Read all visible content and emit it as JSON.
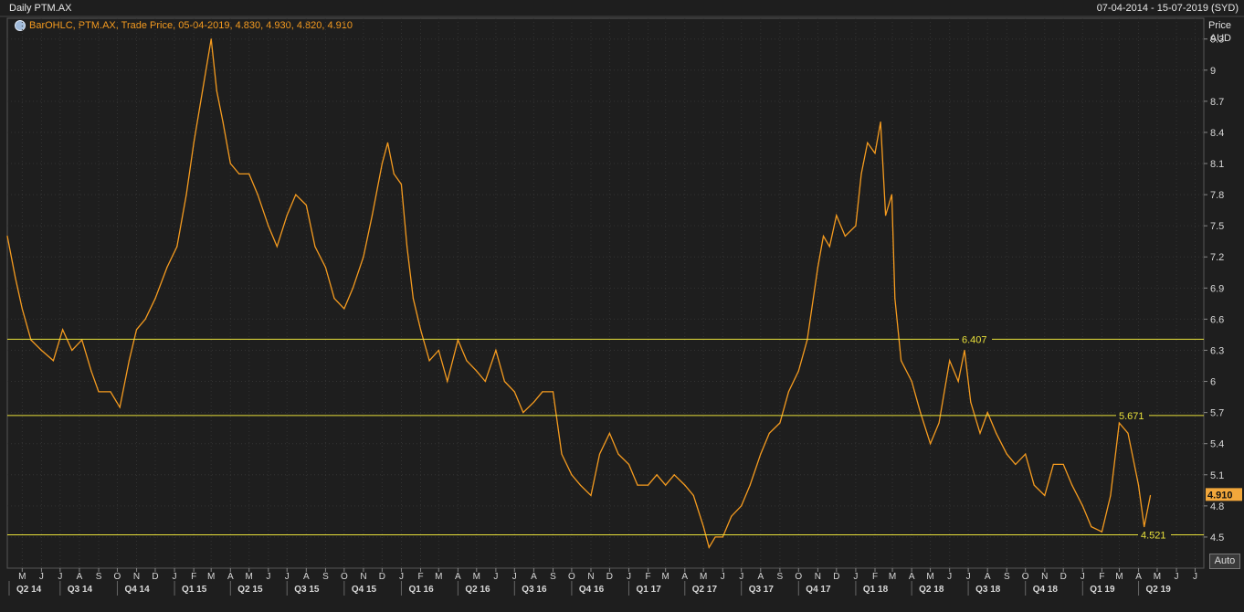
{
  "header": {
    "title": "Daily PTM.AX",
    "date_range": "07-04-2014 - 15-07-2019 (SYD)"
  },
  "legend": {
    "text": "BarOHLC, PTM.AX, Trade Price, 05-04-2019, 4.830, 4.930, 4.820, 4.910"
  },
  "axis": {
    "y_title": "Price",
    "y_unit": "AUD",
    "auto_label": "Auto"
  },
  "colors": {
    "background": "#1e1e1e",
    "grid": "#333333",
    "series": "#f59b1f",
    "hline": "#e8e03a",
    "current_price_bg": "#f2a73b"
  },
  "chart_data": {
    "type": "line",
    "title": "Daily PTM.AX",
    "ylabel": "Price AUD",
    "ylim": [
      4.2,
      9.5
    ],
    "y_ticks": [
      4.5,
      4.8,
      5.1,
      5.4,
      5.7,
      6,
      6.3,
      6.6,
      6.9,
      7.2,
      7.5,
      7.8,
      8.1,
      8.4,
      8.7,
      9,
      9.3
    ],
    "y_tick_labels": [
      "4.5",
      "4.8",
      "5.1",
      "5.4",
      "5.7",
      "6",
      "6.3",
      "6.6",
      "6.9",
      "7.2",
      "7.5",
      "7.8",
      "8.1",
      "8.4",
      "8.7",
      "9",
      "9.3"
    ],
    "x_range": [
      "2014-04-07",
      "2019-07-15"
    ],
    "month_labels": [
      "M",
      "J",
      "J",
      "A",
      "S",
      "O",
      "N",
      "D",
      "J",
      "F",
      "M",
      "A",
      "M",
      "J",
      "J",
      "A",
      "S",
      "O",
      "N",
      "D",
      "J",
      "F",
      "M",
      "A",
      "M",
      "J",
      "J",
      "A",
      "S",
      "O",
      "N",
      "D",
      "J",
      "F",
      "M",
      "A",
      "M",
      "J",
      "J",
      "A",
      "S",
      "O",
      "N",
      "D",
      "J",
      "F",
      "M",
      "A",
      "M",
      "J",
      "J",
      "A",
      "S",
      "O",
      "N",
      "D",
      "J",
      "F",
      "M",
      "A",
      "M",
      "J",
      "J"
    ],
    "month_dates": [
      "2014-05-01",
      "2014-06-01",
      "2014-07-01",
      "2014-08-01",
      "2014-09-01",
      "2014-10-01",
      "2014-11-01",
      "2014-12-01",
      "2015-01-01",
      "2015-02-01",
      "2015-03-01",
      "2015-04-01",
      "2015-05-01",
      "2015-06-01",
      "2015-07-01",
      "2015-08-01",
      "2015-09-01",
      "2015-10-01",
      "2015-11-01",
      "2015-12-01",
      "2016-01-01",
      "2016-02-01",
      "2016-03-01",
      "2016-04-01",
      "2016-05-01",
      "2016-06-01",
      "2016-07-01",
      "2016-08-01",
      "2016-09-01",
      "2016-10-01",
      "2016-11-01",
      "2016-12-01",
      "2017-01-01",
      "2017-02-01",
      "2017-03-01",
      "2017-04-01",
      "2017-05-01",
      "2017-06-01",
      "2017-07-01",
      "2017-08-01",
      "2017-09-01",
      "2017-10-01",
      "2017-11-01",
      "2017-12-01",
      "2018-01-01",
      "2018-02-01",
      "2018-03-01",
      "2018-04-01",
      "2018-05-01",
      "2018-06-01",
      "2018-07-01",
      "2018-08-01",
      "2018-09-01",
      "2018-10-01",
      "2018-11-01",
      "2018-12-01",
      "2019-01-01",
      "2019-02-01",
      "2019-03-01",
      "2019-04-01",
      "2019-05-01",
      "2019-06-01",
      "2019-07-01"
    ],
    "quarter_labels": [
      "Q2 14",
      "Q3 14",
      "Q4 14",
      "Q1 15",
      "Q2 15",
      "Q3 15",
      "Q4 15",
      "Q1 16",
      "Q2 16",
      "Q3 16",
      "Q4 16",
      "Q1 17",
      "Q2 17",
      "Q3 17",
      "Q4 17",
      "Q1 18",
      "Q2 18",
      "Q3 18",
      "Q4 18",
      "Q1 19",
      "Q2 19"
    ],
    "quarter_dates": [
      "2014-04-01",
      "2014-07-01",
      "2014-10-01",
      "2015-01-01",
      "2015-04-01",
      "2015-07-01",
      "2015-10-01",
      "2016-01-01",
      "2016-04-01",
      "2016-07-01",
      "2016-10-01",
      "2017-01-01",
      "2017-04-01",
      "2017-07-01",
      "2017-10-01",
      "2018-01-01",
      "2018-04-01",
      "2018-07-01",
      "2018-10-01",
      "2019-01-01",
      "2019-04-01"
    ],
    "series": [
      {
        "points": [
          [
            "2014-04-07",
            7.4
          ],
          [
            "2014-04-20",
            7.0
          ],
          [
            "2014-05-01",
            6.7
          ],
          [
            "2014-05-15",
            6.4
          ],
          [
            "2014-06-01",
            6.3
          ],
          [
            "2014-06-20",
            6.2
          ],
          [
            "2014-07-05",
            6.5
          ],
          [
            "2014-07-20",
            6.3
          ],
          [
            "2014-08-05",
            6.4
          ],
          [
            "2014-08-20",
            6.1
          ],
          [
            "2014-09-01",
            5.9
          ],
          [
            "2014-09-20",
            5.9
          ],
          [
            "2014-10-05",
            5.75
          ],
          [
            "2014-10-20",
            6.2
          ],
          [
            "2014-11-01",
            6.5
          ],
          [
            "2014-11-15",
            6.6
          ],
          [
            "2014-12-01",
            6.8
          ],
          [
            "2014-12-20",
            7.1
          ],
          [
            "2015-01-05",
            7.3
          ],
          [
            "2015-01-20",
            7.8
          ],
          [
            "2015-02-01",
            8.3
          ],
          [
            "2015-02-15",
            8.8
          ],
          [
            "2015-03-01",
            9.3
          ],
          [
            "2015-03-10",
            8.8
          ],
          [
            "2015-03-20",
            8.5
          ],
          [
            "2015-04-01",
            8.1
          ],
          [
            "2015-04-15",
            8.0
          ],
          [
            "2015-05-01",
            8.0
          ],
          [
            "2015-05-15",
            7.8
          ],
          [
            "2015-06-01",
            7.5
          ],
          [
            "2015-06-15",
            7.3
          ],
          [
            "2015-07-01",
            7.6
          ],
          [
            "2015-07-15",
            7.8
          ],
          [
            "2015-08-01",
            7.7
          ],
          [
            "2015-08-15",
            7.3
          ],
          [
            "2015-09-01",
            7.1
          ],
          [
            "2015-09-15",
            6.8
          ],
          [
            "2015-10-01",
            6.7
          ],
          [
            "2015-10-15",
            6.9
          ],
          [
            "2015-11-01",
            7.2
          ],
          [
            "2015-11-15",
            7.6
          ],
          [
            "2015-12-01",
            8.1
          ],
          [
            "2015-12-10",
            8.3
          ],
          [
            "2015-12-20",
            8.0
          ],
          [
            "2016-01-01",
            7.9
          ],
          [
            "2016-01-10",
            7.3
          ],
          [
            "2016-01-20",
            6.8
          ],
          [
            "2016-02-01",
            6.5
          ],
          [
            "2016-02-15",
            6.2
          ],
          [
            "2016-03-01",
            6.3
          ],
          [
            "2016-03-15",
            6.0
          ],
          [
            "2016-04-01",
            6.4
          ],
          [
            "2016-04-15",
            6.2
          ],
          [
            "2016-05-01",
            6.1
          ],
          [
            "2016-05-15",
            6.0
          ],
          [
            "2016-06-01",
            6.3
          ],
          [
            "2016-06-15",
            6.0
          ],
          [
            "2016-07-01",
            5.9
          ],
          [
            "2016-07-15",
            5.7
          ],
          [
            "2016-08-01",
            5.8
          ],
          [
            "2016-08-15",
            5.9
          ],
          [
            "2016-09-01",
            5.9
          ],
          [
            "2016-09-15",
            5.3
          ],
          [
            "2016-10-01",
            5.1
          ],
          [
            "2016-10-15",
            5.0
          ],
          [
            "2016-11-01",
            4.9
          ],
          [
            "2016-11-15",
            5.3
          ],
          [
            "2016-12-01",
            5.5
          ],
          [
            "2016-12-15",
            5.3
          ],
          [
            "2017-01-01",
            5.2
          ],
          [
            "2017-01-15",
            5.0
          ],
          [
            "2017-02-01",
            5.0
          ],
          [
            "2017-02-15",
            5.1
          ],
          [
            "2017-03-01",
            5.0
          ],
          [
            "2017-03-15",
            5.1
          ],
          [
            "2017-04-01",
            5.0
          ],
          [
            "2017-04-15",
            4.9
          ],
          [
            "2017-05-01",
            4.6
          ],
          [
            "2017-05-10",
            4.4
          ],
          [
            "2017-05-20",
            4.5
          ],
          [
            "2017-06-01",
            4.5
          ],
          [
            "2017-06-15",
            4.7
          ],
          [
            "2017-07-01",
            4.8
          ],
          [
            "2017-07-15",
            5.0
          ],
          [
            "2017-08-01",
            5.3
          ],
          [
            "2017-08-15",
            5.5
          ],
          [
            "2017-09-01",
            5.6
          ],
          [
            "2017-09-15",
            5.9
          ],
          [
            "2017-10-01",
            6.1
          ],
          [
            "2017-10-15",
            6.4
          ],
          [
            "2017-11-01",
            7.1
          ],
          [
            "2017-11-10",
            7.4
          ],
          [
            "2017-11-20",
            7.3
          ],
          [
            "2017-12-01",
            7.6
          ],
          [
            "2017-12-15",
            7.4
          ],
          [
            "2018-01-01",
            7.5
          ],
          [
            "2018-01-10",
            8.0
          ],
          [
            "2018-01-20",
            8.3
          ],
          [
            "2018-02-01",
            8.2
          ],
          [
            "2018-02-10",
            8.5
          ],
          [
            "2018-02-18",
            7.6
          ],
          [
            "2018-02-28",
            7.8
          ],
          [
            "2018-03-05",
            6.8
          ],
          [
            "2018-03-15",
            6.2
          ],
          [
            "2018-04-01",
            6.0
          ],
          [
            "2018-04-15",
            5.7
          ],
          [
            "2018-05-01",
            5.4
          ],
          [
            "2018-05-15",
            5.6
          ],
          [
            "2018-06-01",
            6.2
          ],
          [
            "2018-06-15",
            6.0
          ],
          [
            "2018-06-25",
            6.3
          ],
          [
            "2018-07-05",
            5.8
          ],
          [
            "2018-07-20",
            5.5
          ],
          [
            "2018-08-01",
            5.7
          ],
          [
            "2018-08-15",
            5.5
          ],
          [
            "2018-09-01",
            5.3
          ],
          [
            "2018-09-15",
            5.2
          ],
          [
            "2018-10-01",
            5.3
          ],
          [
            "2018-10-15",
            5.0
          ],
          [
            "2018-11-01",
            4.9
          ],
          [
            "2018-11-15",
            5.2
          ],
          [
            "2018-12-01",
            5.2
          ],
          [
            "2018-12-15",
            5.0
          ],
          [
            "2019-01-01",
            4.8
          ],
          [
            "2019-01-15",
            4.6
          ],
          [
            "2019-02-01",
            4.55
          ],
          [
            "2019-02-15",
            4.9
          ],
          [
            "2019-03-01",
            5.6
          ],
          [
            "2019-03-15",
            5.5
          ],
          [
            "2019-04-01",
            5.0
          ],
          [
            "2019-04-10",
            4.6
          ],
          [
            "2019-04-20",
            4.9
          ]
        ]
      }
    ],
    "horizontal_lines": [
      {
        "value": 6.407,
        "label": "6.407"
      },
      {
        "value": 5.671,
        "label": "5.671"
      },
      {
        "value": 4.521,
        "label": "4.521"
      }
    ],
    "current_price": {
      "value": 4.91,
      "label": "4.910"
    },
    "grid": true
  }
}
